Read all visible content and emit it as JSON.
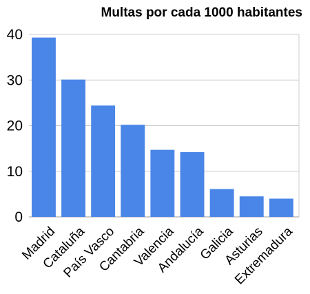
{
  "chart_data": {
    "type": "bar",
    "title": "Multas por cada 1000 habitantes",
    "categories": [
      "Madrid",
      "Cataluña",
      "País Vasco",
      "Cantabria",
      "Valencia",
      "Andalucía",
      "Galicia",
      "Asturias",
      "Extremadura"
    ],
    "values": [
      39.3,
      30.1,
      24.4,
      20.2,
      14.7,
      14.2,
      6.1,
      4.5,
      4.0
    ],
    "xlabel": "",
    "ylabel": "",
    "ylim": [
      0,
      40
    ],
    "yticks": [
      0,
      10,
      20,
      30,
      40
    ],
    "grid": true,
    "legend": "none",
    "colors": {
      "bar": "#4a86e8",
      "grid": "#cccccc",
      "axis": "#999999"
    }
  }
}
